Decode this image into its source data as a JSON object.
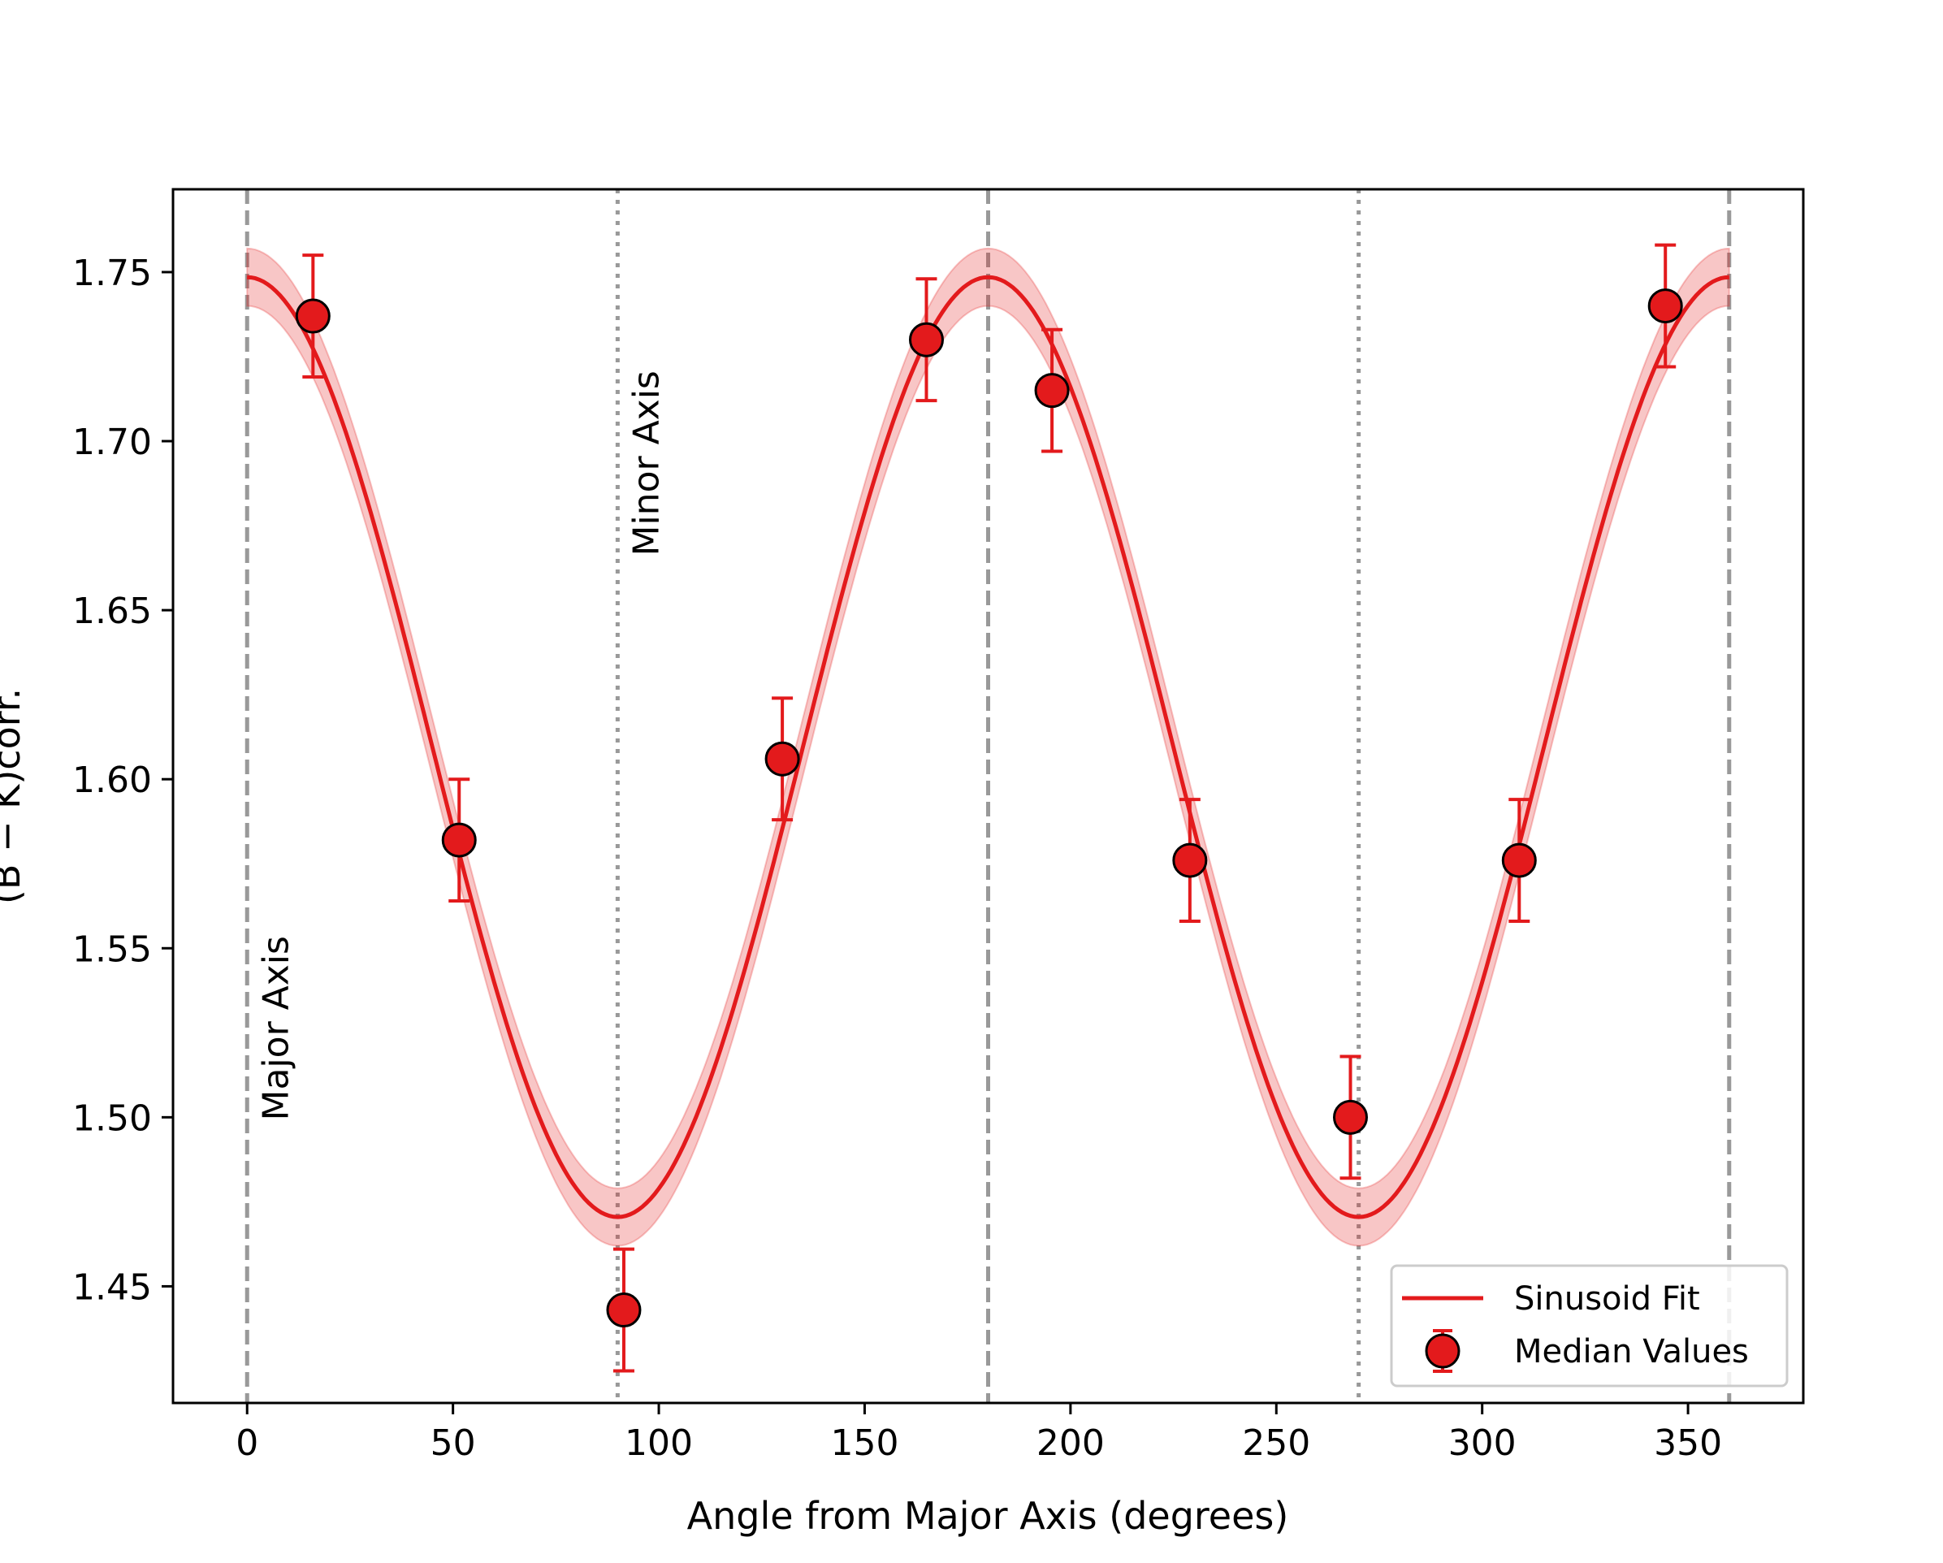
{
  "chart_data": {
    "type": "scatter",
    "title": "",
    "xlabel": "Angle from Major Axis (degrees)",
    "ylabel": "(B − K)corr.",
    "xlim": [
      -18,
      378
    ],
    "ylim": [
      1.4155,
      1.7745
    ],
    "xticks": [
      0,
      50,
      100,
      150,
      200,
      250,
      300,
      350
    ],
    "yticks": [
      1.45,
      1.5,
      1.55,
      1.6,
      1.65,
      1.7,
      1.75
    ],
    "xtick_labels": [
      "0",
      "50",
      "100",
      "150",
      "200",
      "250",
      "300",
      "350"
    ],
    "ytick_labels": [
      "1.45",
      "1.50",
      "1.55",
      "1.60",
      "1.65",
      "1.70",
      "1.75"
    ],
    "fit": {
      "name": "Sinusoid Fit",
      "model": "mean + amplitude * cos(2 * angle)",
      "mean": 1.6095,
      "amplitude": 0.139,
      "band_halfwidth": 0.0085,
      "x_range": [
        0,
        360
      ],
      "color": "#e31a1c"
    },
    "series": [
      {
        "name": "Median Values",
        "x": [
          16,
          51.5,
          91.5,
          130,
          165,
          195.5,
          229,
          268,
          309,
          344.5
        ],
        "y": [
          1.737,
          1.582,
          1.443,
          1.606,
          1.73,
          1.715,
          1.576,
          1.5,
          1.576,
          1.74
        ],
        "yerr": [
          0.018,
          0.018,
          0.018,
          0.018,
          0.018,
          0.018,
          0.018,
          0.018,
          0.018,
          0.018
        ],
        "color": "#e31a1c"
      }
    ],
    "vlines": [
      {
        "x": 0,
        "style": "dashed"
      },
      {
        "x": 90,
        "style": "dotted"
      },
      {
        "x": 180,
        "style": "dashed"
      },
      {
        "x": 270,
        "style": "dotted"
      },
      {
        "x": 360,
        "style": "dashed"
      }
    ],
    "annotations": [
      {
        "text": "Major Axis",
        "x": 4,
        "y": 1.499,
        "rotation": 90
      },
      {
        "text": "Minor Axis",
        "x": 94,
        "y": 1.666,
        "rotation": 90
      }
    ],
    "legend": {
      "position": "lower-right",
      "entries": [
        "Sinusoid Fit",
        "Median Values"
      ]
    }
  }
}
